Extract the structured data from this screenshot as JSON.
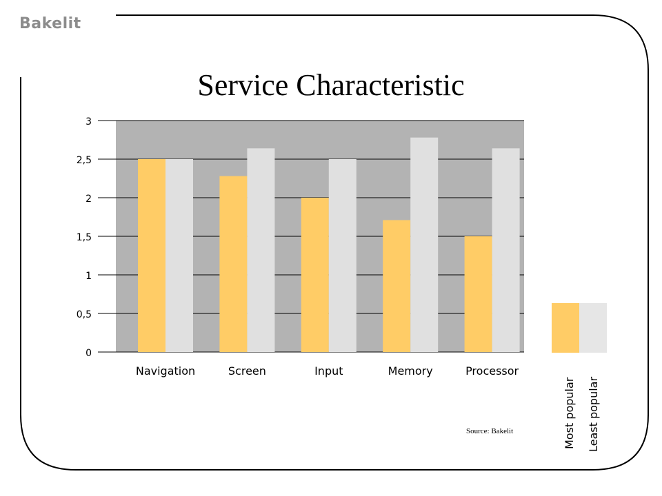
{
  "brand": "Bakelit",
  "source_note": "Source: Bakelit",
  "chart_data": {
    "type": "bar",
    "title": "Service Characteristic",
    "categories": [
      "Navigation",
      "Screen",
      "Input",
      "Memory",
      "Processor"
    ],
    "series": [
      {
        "name": "Most popular",
        "values": [
          2.5,
          2.28,
          2.0,
          1.71,
          1.5
        ],
        "color": "#FFCC66"
      },
      {
        "name": "Least popular",
        "values": [
          2.5,
          2.64,
          2.5,
          2.78,
          2.64
        ],
        "color": "#E0E0E0"
      }
    ],
    "ylim": [
      0,
      3
    ],
    "yticks": [
      0,
      0.5,
      1,
      1.5,
      2,
      2.5,
      3
    ],
    "ytick_labels": [
      "0",
      "0,5",
      "1",
      "1,5",
      "2",
      "2,5",
      "3"
    ],
    "plot_background": "#B3B3B3",
    "grid": true,
    "legend_position": "right",
    "legend_colors": [
      "#FFCC66",
      "#E6E6E6"
    ]
  }
}
